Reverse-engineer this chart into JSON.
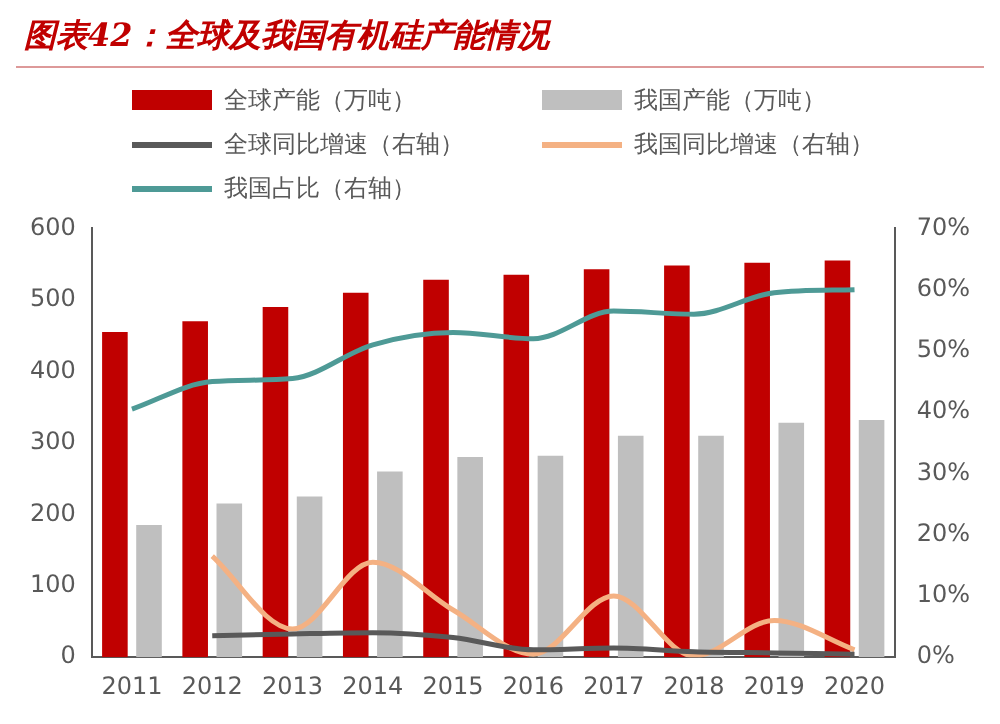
{
  "chart_data": {
    "type": "bar",
    "title": "图表42：全球及我国有机硅产能情况",
    "categories": [
      "2011",
      "2012",
      "2013",
      "2014",
      "2015",
      "2016",
      "2017",
      "2018",
      "2019",
      "2020"
    ],
    "series": [
      {
        "name": "全球产能（万吨）",
        "color": "#c00000",
        "values": [
          455,
          470,
          490,
          510,
          528,
          535,
          543,
          548,
          552,
          555
        ]
      },
      {
        "name": "我国产能（万吨）",
        "color": "#bfbfbf",
        "values": [
          185,
          215,
          225,
          260,
          280,
          282,
          310,
          310,
          328,
          332
        ]
      },
      {
        "name": "全球同比增速（右轴）",
        "type": "line",
        "axis": "y2",
        "color": "#595959",
        "values": [
          null,
          3.5,
          3.8,
          4.0,
          3.2,
          1.2,
          1.5,
          0.9,
          0.7,
          0.5
        ]
      },
      {
        "name": "我国同比增速（右轴）",
        "type": "line",
        "axis": "y2",
        "color": "#f4b183",
        "values": [
          null,
          16.5,
          4.6,
          15.5,
          7.7,
          0.5,
          10,
          0.2,
          6,
          1.2
        ]
      },
      {
        "name": "我国占比（右轴）",
        "type": "line",
        "axis": "y2",
        "color": "#4e9a96",
        "values": [
          40.5,
          45,
          45.5,
          51,
          53,
          52,
          56.5,
          56,
          59.5,
          60
        ]
      }
    ],
    "ylim": [
      0,
      600
    ],
    "yticks": [
      0,
      100,
      200,
      300,
      400,
      500,
      600
    ],
    "y2lim": [
      0,
      70
    ],
    "y2ticks": [
      {
        "value": 0,
        "label": "0%"
      },
      {
        "value": 10,
        "label": "10%"
      },
      {
        "value": 20,
        "label": "20%"
      },
      {
        "value": 30,
        "label": "30%"
      },
      {
        "value": 40,
        "label": "40%"
      },
      {
        "value": 50,
        "label": "50%"
      },
      {
        "value": 60,
        "label": "60%"
      },
      {
        "value": 70,
        "label": "70%"
      }
    ],
    "grid": false,
    "legend": "top",
    "marker": "none",
    "line_style": "solid"
  }
}
